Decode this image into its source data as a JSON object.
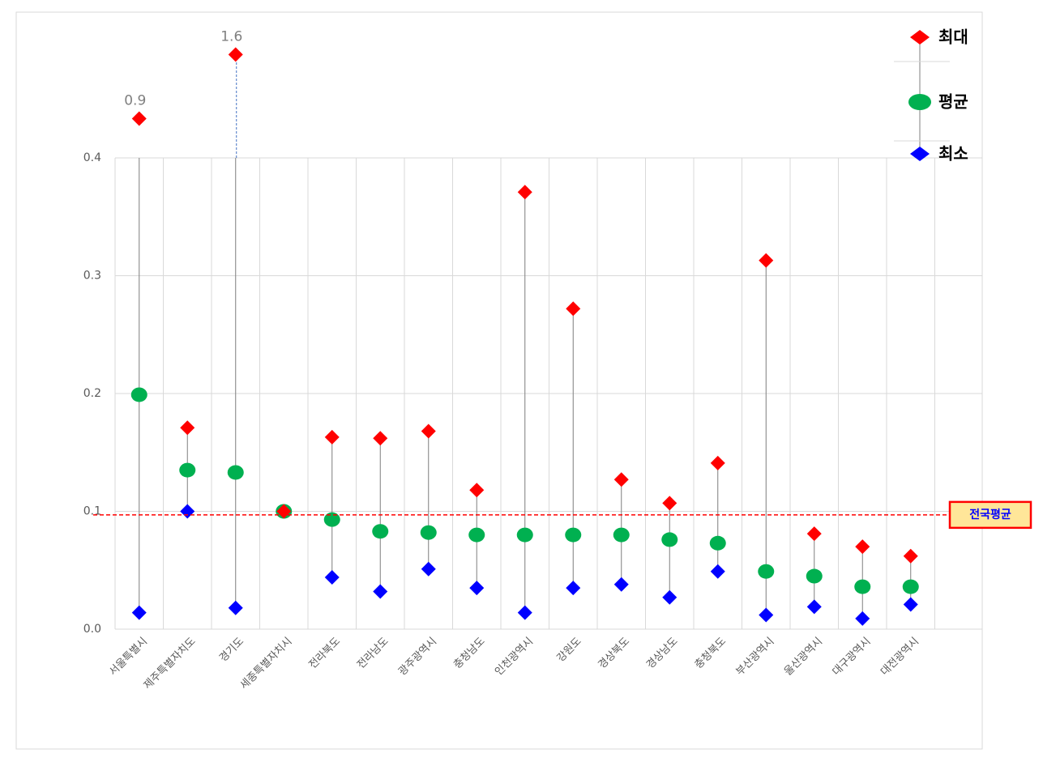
{
  "chart_data": {
    "type": "dot-range",
    "categories": [
      "서울특별시",
      "제주특별자치도",
      "경기도",
      "세종특별자치시",
      "전라북도",
      "전라남도",
      "광주광역시",
      "충청남도",
      "인천광역시",
      "강원도",
      "경상북도",
      "경상남도",
      "충청북도",
      "부산광역시",
      "울산광역시",
      "대구광역시",
      "대전광역시"
    ],
    "series": [
      {
        "name": "최대",
        "color": "#ff0000",
        "marker": "diamond",
        "values": [
          0.9,
          0.171,
          1.6,
          0.1,
          0.163,
          0.162,
          0.168,
          0.118,
          0.371,
          0.272,
          0.127,
          0.107,
          0.141,
          0.313,
          0.081,
          0.07,
          0.062
        ],
        "value_labels": [
          "0.9",
          null,
          "1.6",
          null,
          null,
          null,
          null,
          null,
          null,
          null,
          null,
          null,
          null,
          null,
          null,
          null,
          null
        ]
      },
      {
        "name": "평균",
        "color": "#00b050",
        "marker": "circle",
        "values": [
          0.199,
          0.135,
          0.133,
          0.1,
          0.093,
          0.083,
          0.082,
          0.08,
          0.08,
          0.08,
          0.08,
          0.076,
          0.073,
          0.049,
          0.045,
          0.036,
          0.036
        ]
      },
      {
        "name": "최소",
        "color": "#0000ff",
        "marker": "diamond",
        "values": [
          0.014,
          0.1,
          0.018,
          0.1,
          0.044,
          0.032,
          0.051,
          0.035,
          0.014,
          0.035,
          0.038,
          0.027,
          0.049,
          0.012,
          0.019,
          0.009,
          0.021
        ]
      }
    ],
    "ylim": [
      0,
      0.4
    ],
    "yticks": [
      {
        "value": 0,
        "label": "0.0"
      },
      0.1,
      0.2,
      0.3,
      0.4
    ],
    "grid": true,
    "reference_line": {
      "value": 0.097,
      "label": "전국평균",
      "color": "#ff0000"
    },
    "legend": "top-right"
  }
}
